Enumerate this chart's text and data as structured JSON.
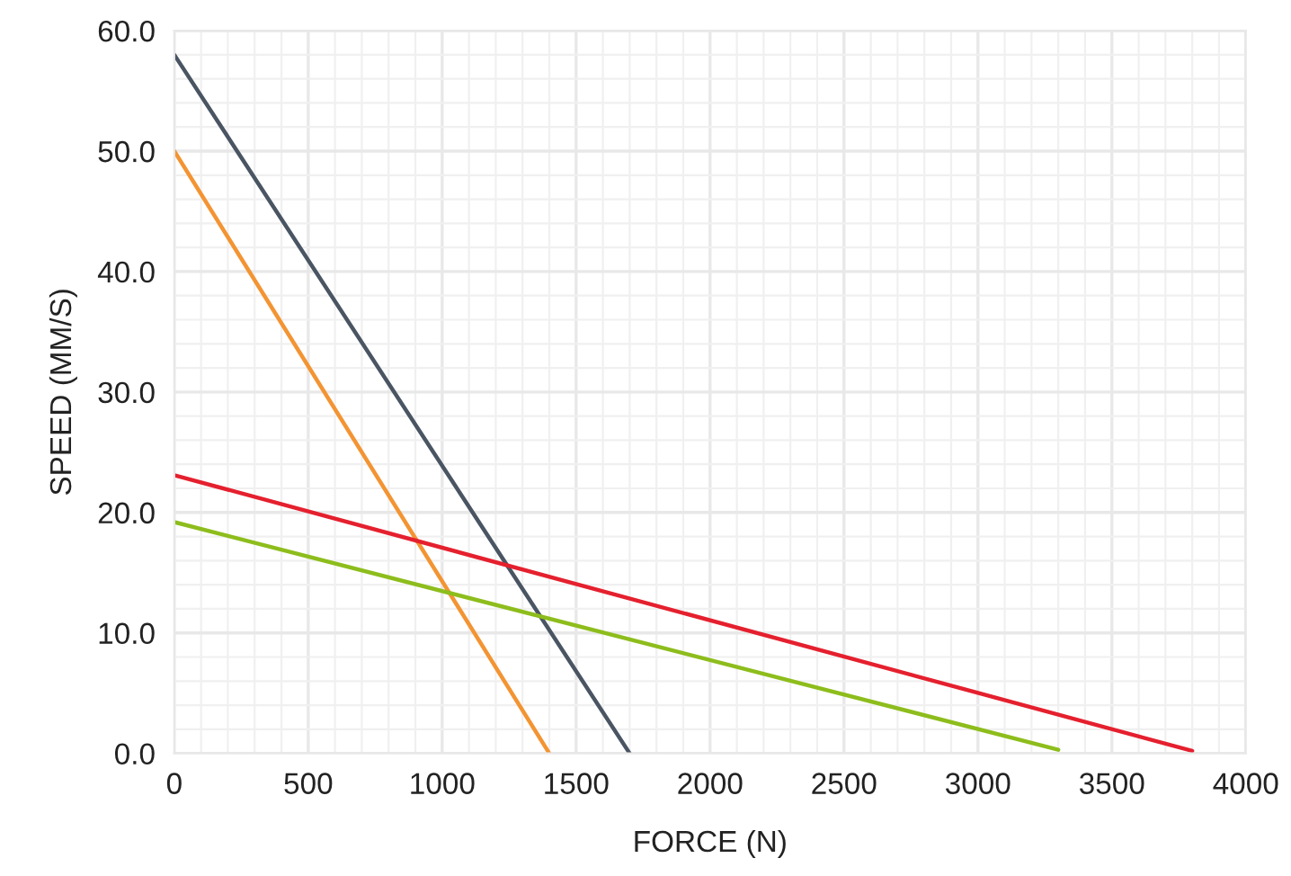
{
  "chart_data": {
    "type": "line",
    "xlabel": "FORCE (N)",
    "ylabel": "SPEED (MM/S)",
    "series": [
      {
        "color": "#4a5563",
        "x": [
          0,
          1700
        ],
        "values": [
          58,
          0
        ]
      },
      {
        "color": "#f39433",
        "x": [
          0,
          1400
        ],
        "values": [
          50,
          0
        ]
      },
      {
        "color": "#e5202e",
        "x": [
          0,
          3800
        ],
        "values": [
          23.1,
          0.2
        ]
      },
      {
        "color": "#8dbd1c",
        "x": [
          0,
          3300
        ],
        "values": [
          19.2,
          0.3
        ]
      }
    ],
    "xlim": [
      0,
      4000
    ],
    "xticks": [
      0,
      500,
      1000,
      1500,
      2000,
      2500,
      3000,
      3500,
      4000
    ],
    "ylim": [
      0,
      60
    ],
    "yticks": [
      {
        "value": 0,
        "label": "0.0"
      },
      {
        "value": 10,
        "label": "10.0"
      },
      {
        "value": 20,
        "label": "20.0"
      },
      {
        "value": 30,
        "label": "30.0"
      },
      {
        "value": 40,
        "label": "40.0"
      },
      {
        "value": 50,
        "label": "50.0"
      },
      {
        "value": 60,
        "label": "60.0"
      }
    ],
    "grid": true,
    "legend": false,
    "marker": "none",
    "line_style": "solid"
  }
}
